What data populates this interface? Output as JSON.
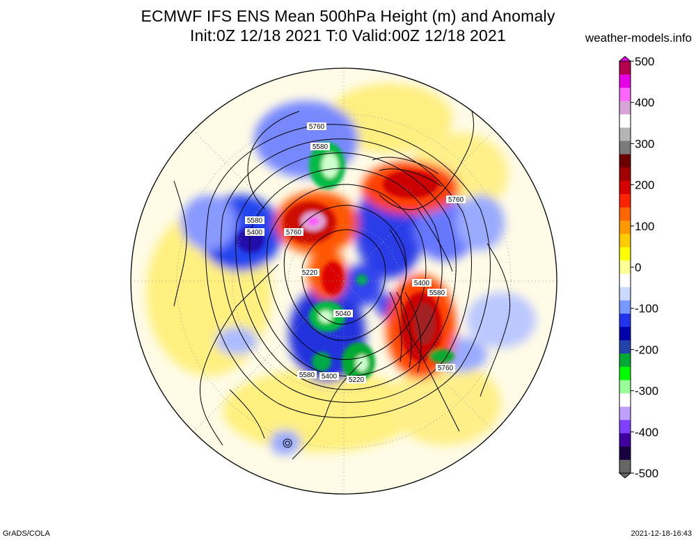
{
  "title_line1": "ECMWF IFS ENS Mean 500hPa Height (m) and Anomaly",
  "title_line2": "Init:0Z 12/18 2021  T:0 Valid:00Z 12/18 2021",
  "site": "weather-models.info",
  "footer_left": "GrADS/COLA",
  "footer_right": "2021-12-18-16:43",
  "colorbar": {
    "ticks": [
      "500",
      "400",
      "300",
      "200",
      "100",
      "0",
      "-100",
      "-200",
      "-300",
      "-400",
      "-500"
    ],
    "colors": [
      "#b5004f",
      "#e800e8",
      "#ff66ff",
      "#d9a5d9",
      "#ffffff",
      "#b5b5b5",
      "#7a7a7a",
      "#6b0000",
      "#a00000",
      "#d70000",
      "#ff2200",
      "#ff6600",
      "#ff9900",
      "#ffcc00",
      "#ffff00",
      "#ffff99",
      "#ffffff",
      "#ccd9ff",
      "#7799ff",
      "#2233ee",
      "#0000aa",
      "#2244aa",
      "#00aa33",
      "#00ff00",
      "#99ff99",
      "#ffffff",
      "#c0a0ff",
      "#8040ff",
      "#4000a0",
      "#1a0040",
      "#666666"
    ]
  },
  "contour_labels": [
    "5760",
    "5580",
    "5580",
    "5400",
    "5760",
    "5220",
    "5040",
    "5760",
    "5400",
    "5580",
    "5580",
    "5400",
    "5220",
    "5760"
  ]
}
